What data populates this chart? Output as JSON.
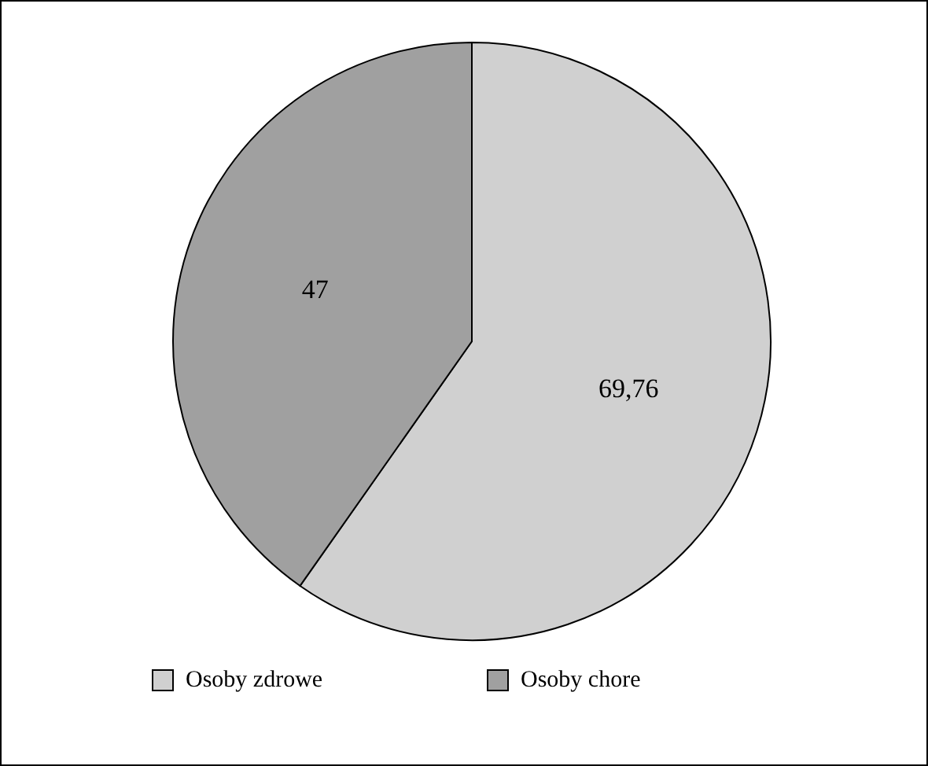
{
  "chart_data": {
    "type": "pie",
    "categories": [
      "Osoby zdrowe",
      "Osoby chore"
    ],
    "values": [
      69.76,
      47
    ],
    "colors": [
      "#d0d0d0",
      "#a0a0a0"
    ],
    "value_labels": [
      "69,76",
      "47"
    ],
    "legend": "bottom"
  }
}
